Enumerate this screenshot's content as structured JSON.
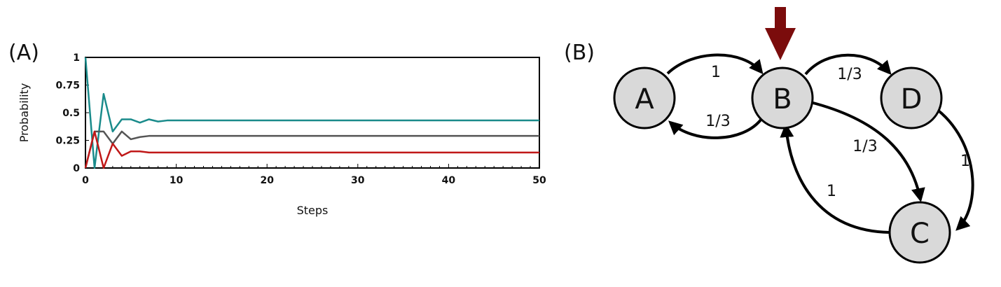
{
  "panels": {
    "a_label": "(A)",
    "b_label": "(B)"
  },
  "chart_data": {
    "type": "line",
    "title": "",
    "xlabel": "Steps",
    "ylabel": "Probability",
    "xlim": [
      0,
      50
    ],
    "ylim": [
      0,
      1
    ],
    "xticks": [
      "0",
      "10",
      "20",
      "30",
      "40",
      "50"
    ],
    "yticks": [
      "0",
      "0.25",
      "0.5",
      "0.75",
      "1"
    ],
    "grid": false,
    "x": [
      0,
      1,
      2,
      3,
      4,
      5,
      6,
      7,
      8,
      9,
      10,
      11,
      12,
      14,
      16,
      18,
      20,
      25,
      30,
      35,
      40,
      45,
      50
    ],
    "series": [
      {
        "color": "#1a8b8b",
        "values": [
          1,
          0,
          0.67,
          0.33,
          0.44,
          0.44,
          0.41,
          0.44,
          0.42,
          0.43,
          0.43,
          0.43,
          0.43,
          0.43,
          0.43,
          0.43,
          0.43,
          0.43,
          0.43,
          0.43,
          0.43,
          0.43,
          0.43
        ]
      },
      {
        "color": "#555555",
        "values": [
          0,
          0.33,
          0.33,
          0.22,
          0.33,
          0.26,
          0.28,
          0.29,
          0.29,
          0.29,
          0.29,
          0.29,
          0.29,
          0.29,
          0.29,
          0.29,
          0.29,
          0.29,
          0.29,
          0.29,
          0.29,
          0.29,
          0.29
        ]
      },
      {
        "color": "#c01818",
        "values": [
          0,
          0.33,
          0,
          0.22,
          0.11,
          0.15,
          0.15,
          0.14,
          0.14,
          0.14,
          0.14,
          0.14,
          0.14,
          0.14,
          0.14,
          0.14,
          0.14,
          0.14,
          0.14,
          0.14,
          0.14,
          0.14,
          0.14
        ]
      }
    ]
  },
  "graph": {
    "node_fill": "#d9d9d9",
    "edge_color": "#000000",
    "start_marker_color": "#7b0c0c",
    "nodes": [
      {
        "id": "A",
        "label": "A"
      },
      {
        "id": "B",
        "label": "B"
      },
      {
        "id": "D",
        "label": "D"
      },
      {
        "id": "C",
        "label": "C"
      }
    ],
    "edges": [
      {
        "from": "A",
        "to": "B",
        "label": "1"
      },
      {
        "from": "B",
        "to": "A",
        "label": "1/3"
      },
      {
        "from": "B",
        "to": "D",
        "label": "1/3"
      },
      {
        "from": "B",
        "to": "C",
        "label": "1/3"
      },
      {
        "from": "D",
        "to": "C",
        "label": "1"
      },
      {
        "from": "C",
        "to": "B",
        "label": "1"
      }
    ],
    "start_node": "B"
  }
}
